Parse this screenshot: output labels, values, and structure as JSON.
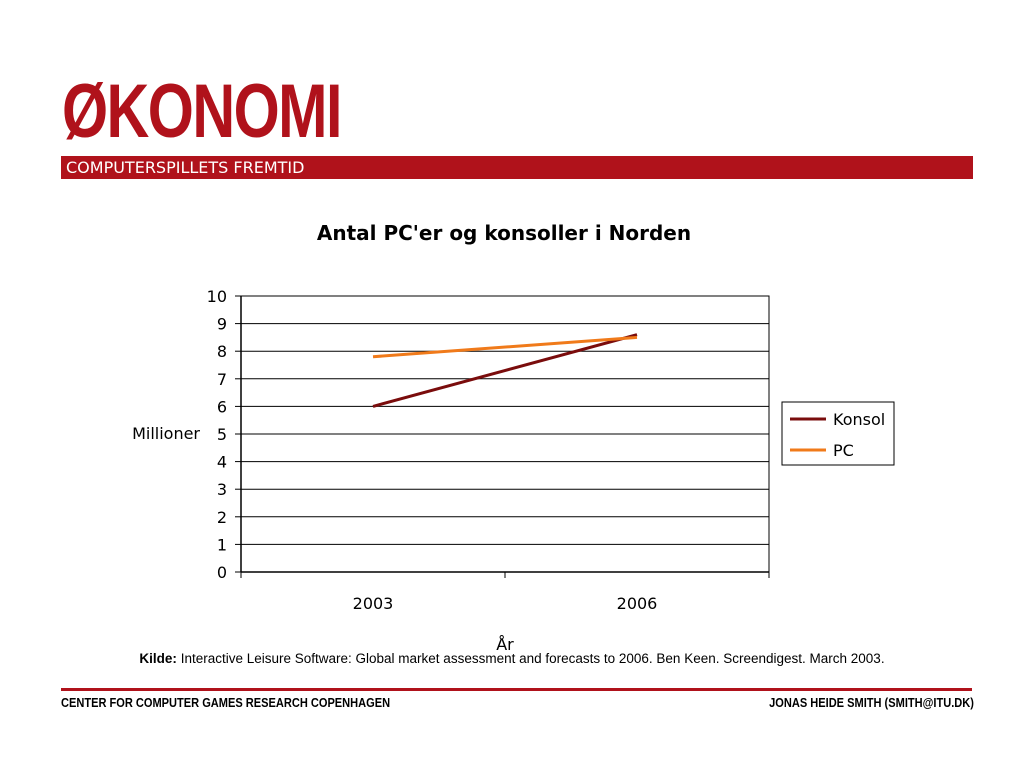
{
  "slide": {
    "heading": "ØKONOMI",
    "subheading": "COMPUTERSPILLETS FREMTID",
    "accent_color": "#b0121b"
  },
  "source": {
    "label": "Kilde:",
    "text": "Interactive Leisure Software: Global market assessment and forecasts to 2006. Ben Keen. Screendigest. March 2003."
  },
  "footer": {
    "left": "CENTER FOR COMPUTER GAMES RESEARCH COPENHAGEN",
    "right": "JONAS HEIDE SMITH (SMITH@ITU.DK)"
  },
  "chart_data": {
    "type": "line",
    "title": "Antal PC'er og konsoller i Norden",
    "xlabel": "År",
    "ylabel": "Millioner",
    "categories": [
      "2003",
      "2006"
    ],
    "ylim": [
      0,
      10
    ],
    "yticks": [
      "0",
      "1",
      "2",
      "3",
      "4",
      "5",
      "6",
      "7",
      "8",
      "9",
      "10"
    ],
    "grid": true,
    "legend_position": "right",
    "series": [
      {
        "name": "Konsol",
        "values": [
          6.0,
          8.6
        ],
        "color": "#7a0c0c"
      },
      {
        "name": "PC",
        "values": [
          7.8,
          8.5
        ],
        "color": "#f07a1a"
      }
    ]
  }
}
